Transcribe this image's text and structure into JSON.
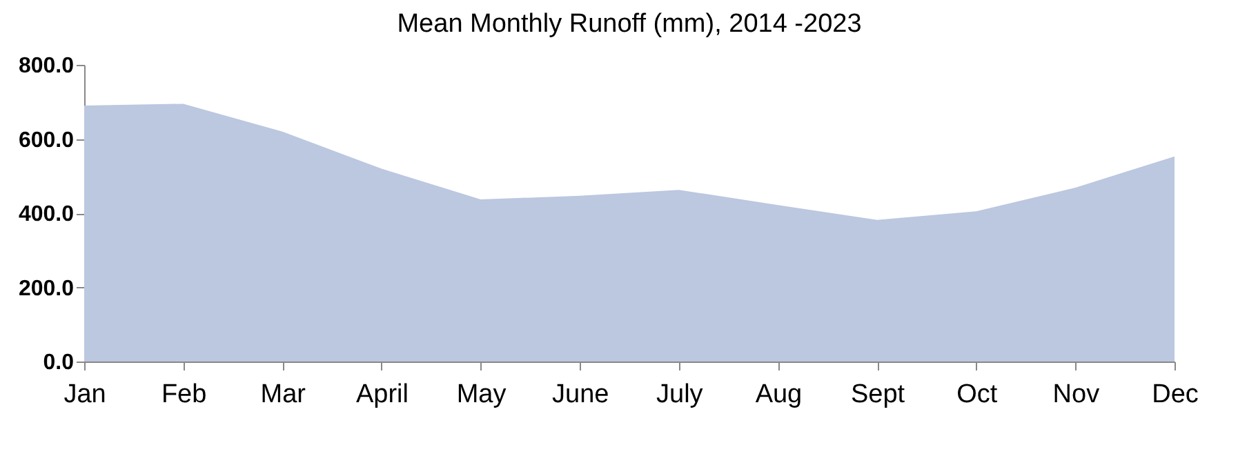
{
  "chart_data": {
    "type": "area",
    "title": "Mean Monthly Runoff (mm), 2014 -2023",
    "categories": [
      "Jan",
      "Feb",
      "Mar",
      "April",
      "May",
      "June",
      "July",
      "Aug",
      "Sept",
      "Oct",
      "Nov",
      "Dec"
    ],
    "values": [
      690,
      695,
      620,
      520,
      437,
      447,
      463,
      422,
      382,
      405,
      469,
      553
    ],
    "color": "#bcc7e0",
    "ylim": [
      0,
      800
    ],
    "yticks": [
      {
        "value": 0,
        "label": "0.0"
      },
      {
        "value": 200,
        "label": "200.0"
      },
      {
        "value": 400,
        "label": "400.0"
      },
      {
        "value": 600,
        "label": "600.0"
      },
      {
        "value": 800,
        "label": "800.0"
      }
    ],
    "grid": false
  }
}
